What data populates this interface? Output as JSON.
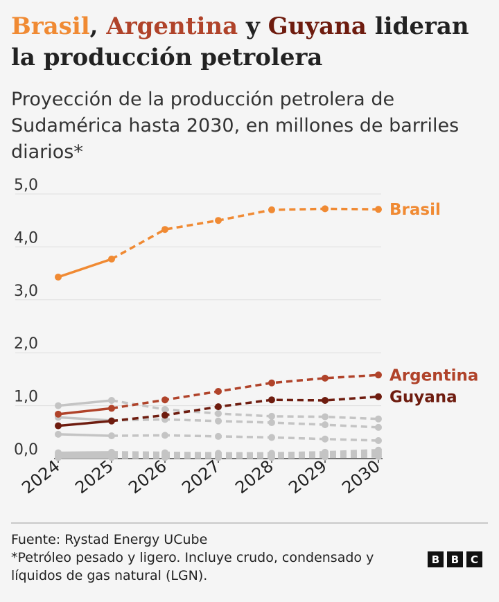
{
  "header": {
    "title_parts": [
      {
        "text": "Brasil",
        "color": "#f08a33"
      },
      {
        "text": ", ",
        "color": "#222222"
      },
      {
        "text": "Argentina",
        "color": "#b0432a"
      },
      {
        "text": " y ",
        "color": "#222222"
      },
      {
        "text": "Guyana",
        "color": "#6e1c0f"
      },
      {
        "text": " lideran la producción petrolera",
        "color": "#222222"
      }
    ],
    "subtitle": "Proyección de la producción petrolera de Sudamérica hasta 2030, en millones de barriles diarios*"
  },
  "chart_data": {
    "type": "line",
    "x": [
      "2024",
      "2025",
      "2026",
      "2027",
      "2028",
      "2029",
      "2030"
    ],
    "ylim": [
      0,
      5
    ],
    "yticks": [
      "0,0",
      "1,0",
      "2,0",
      "3,0",
      "4,0",
      "5,0"
    ],
    "grid": true,
    "solid_until": "2025",
    "series": [
      {
        "name": "Brasil",
        "color": "#f08a33",
        "labeled": true,
        "values": [
          3.43,
          3.77,
          4.33,
          4.5,
          4.7,
          4.72,
          4.71
        ]
      },
      {
        "name": "Argentina",
        "color": "#b0432a",
        "labeled": true,
        "values": [
          0.84,
          0.95,
          1.11,
          1.27,
          1.43,
          1.52,
          1.58
        ]
      },
      {
        "name": "Guyana",
        "color": "#6e1c0f",
        "labeled": true,
        "values": [
          0.62,
          0.71,
          0.82,
          0.98,
          1.11,
          1.1,
          1.17
        ]
      },
      {
        "color": "#c4c4c4",
        "labeled": false,
        "values": [
          1.0,
          1.1,
          0.93,
          0.85,
          0.8,
          0.79,
          0.75
        ]
      },
      {
        "color": "#c4c4c4",
        "labeled": false,
        "values": [
          0.78,
          0.72,
          0.74,
          0.71,
          0.68,
          0.64,
          0.59
        ]
      },
      {
        "color": "#c4c4c4",
        "labeled": false,
        "values": [
          0.46,
          0.43,
          0.44,
          0.42,
          0.4,
          0.37,
          0.34
        ]
      },
      {
        "color": "#c4c4c4",
        "labeled": false,
        "values": [
          0.11,
          0.12,
          0.11,
          0.1,
          0.1,
          0.12,
          0.16
        ]
      },
      {
        "color": "#c4c4c4",
        "labeled": false,
        "values": [
          0.08,
          0.09,
          0.08,
          0.08,
          0.07,
          0.09,
          0.12
        ]
      },
      {
        "color": "#c4c4c4",
        "labeled": false,
        "values": [
          0.05,
          0.06,
          0.05,
          0.05,
          0.05,
          0.06,
          0.08
        ]
      },
      {
        "color": "#c4c4c4",
        "labeled": false,
        "values": [
          0.02,
          0.02,
          0.02,
          0.02,
          0.02,
          0.03,
          0.04
        ]
      }
    ]
  },
  "footer": {
    "source": "Fuente: Rystad Energy UCube",
    "note": "*Petróleo pesado y ligero. Incluye crudo, condensado y líquidos de gas natural (LGN).",
    "logo": [
      "B",
      "B",
      "C"
    ]
  }
}
